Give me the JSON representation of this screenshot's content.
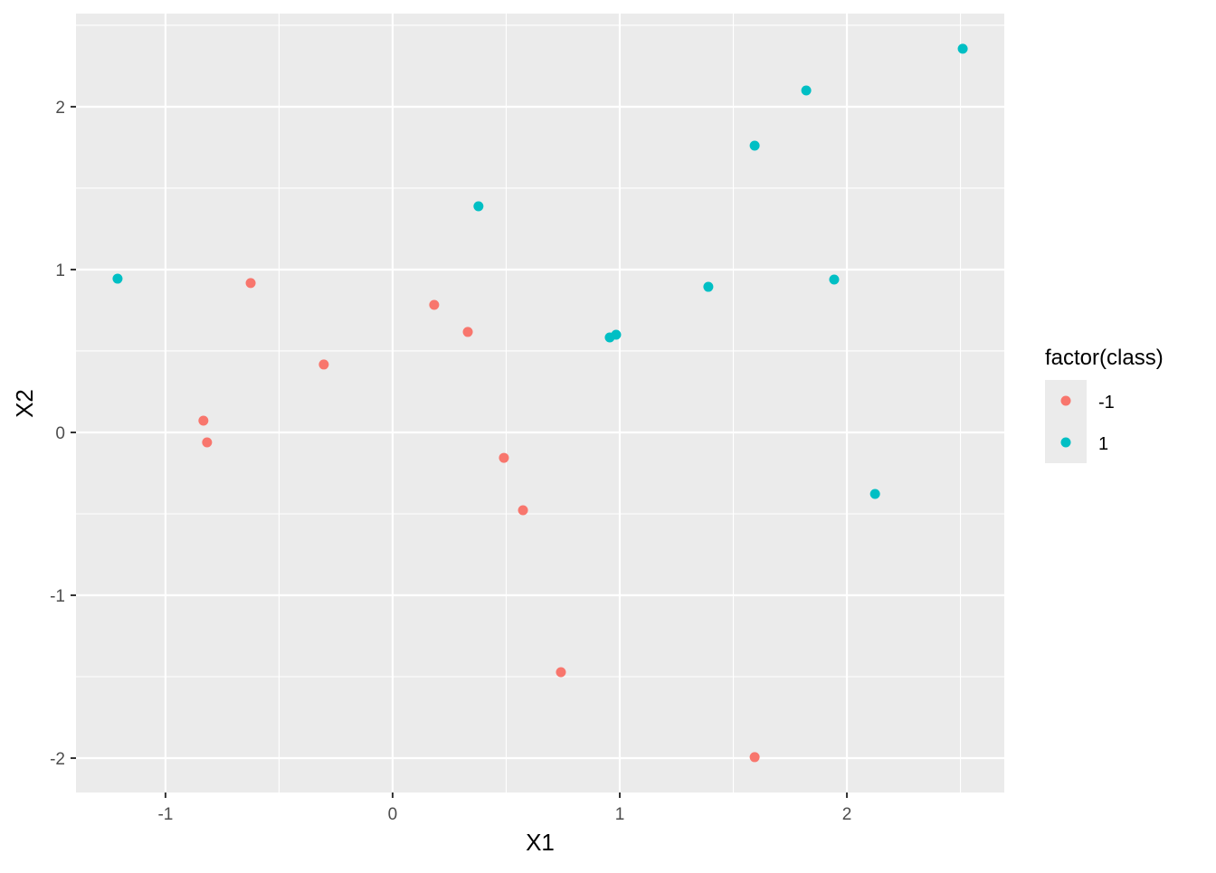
{
  "chart_data": {
    "type": "scatter",
    "title": "",
    "xlabel": "X1",
    "ylabel": "X2",
    "xlim": [
      -1.394,
      2.693
    ],
    "ylim": [
      -2.211,
      2.572
    ],
    "x_ticks": [
      -1,
      0,
      1,
      2
    ],
    "y_ticks": [
      -2,
      -1,
      0,
      1,
      2
    ],
    "x_tick_labels": [
      "-1",
      "0",
      "1",
      "2"
    ],
    "y_tick_labels": [
      "-2",
      "-1",
      "0",
      "1",
      "2"
    ],
    "grid": true,
    "background": "#EBEBEB",
    "legend": {
      "title": "factor(class)",
      "placement": "right",
      "entries": [
        "-1",
        "1"
      ]
    },
    "series": [
      {
        "name": "-1",
        "color": "#F8766D",
        "points": [
          [
            -0.625,
            0.917
          ],
          [
            -0.833,
            0.072
          ],
          [
            -0.817,
            -0.061
          ],
          [
            -0.303,
            0.417
          ],
          [
            0.183,
            0.783
          ],
          [
            0.331,
            0.617
          ],
          [
            0.49,
            -0.156
          ],
          [
            0.574,
            -0.478
          ],
          [
            0.741,
            -1.472
          ],
          [
            1.594,
            -1.994
          ]
        ]
      },
      {
        "name": "1",
        "color": "#00BFC4",
        "points": [
          [
            -1.211,
            0.944
          ],
          [
            0.378,
            1.389
          ],
          [
            0.956,
            0.583
          ],
          [
            0.984,
            0.6
          ],
          [
            1.39,
            0.894
          ],
          [
            1.594,
            1.761
          ],
          [
            1.821,
            2.1
          ],
          [
            1.944,
            0.939
          ],
          [
            2.124,
            -0.378
          ],
          [
            2.51,
            2.356
          ]
        ]
      }
    ]
  }
}
